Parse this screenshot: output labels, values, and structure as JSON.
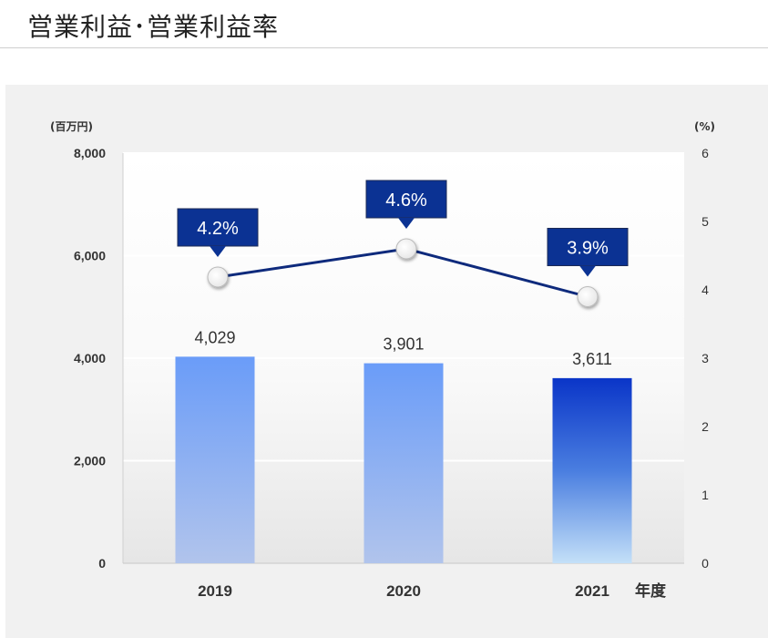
{
  "page": {
    "title": "営業利益･営業利益率"
  },
  "chart_data": {
    "type": "bar",
    "categories": [
      "2019",
      "2020",
      "2021"
    ],
    "xlabel": "年度",
    "series": [
      {
        "name": "営業利益",
        "type": "bar",
        "axis": "left",
        "values": [
          4029,
          3901,
          3611
        ],
        "value_labels": [
          "4,029",
          "3,901",
          "3,611"
        ]
      },
      {
        "name": "営業利益率",
        "type": "line",
        "axis": "right",
        "values": [
          4.2,
          4.6,
          3.9
        ],
        "value_labels": [
          "4.2%",
          "4.6%",
          "3.9%"
        ]
      }
    ],
    "y_left": {
      "unit_label": "(百万円)",
      "ylim": [
        0,
        8000
      ],
      "ticks": [
        0,
        2000,
        4000,
        6000,
        8000
      ],
      "tick_labels": [
        "0",
        "2,000",
        "4,000",
        "6,000",
        "8,000"
      ]
    },
    "y_right": {
      "unit_label": "(%)",
      "ylim": [
        0,
        6
      ],
      "ticks": [
        0,
        1,
        2,
        3,
        4,
        5,
        6
      ],
      "tick_labels": [
        "0",
        "1",
        "2",
        "3",
        "4",
        "5",
        "6"
      ]
    },
    "grid": true,
    "colors": {
      "bar_light_top": "#6a9cf8",
      "bar_light_bottom": "#b1c4ec",
      "bar_highlight_top": "#0a35c8",
      "bar_highlight_bottom": "#c4e0f8",
      "line": "#0e2a7c",
      "callout": "#0b3293",
      "marker_fill": "#ffffff"
    },
    "highlight_category": "2021"
  }
}
